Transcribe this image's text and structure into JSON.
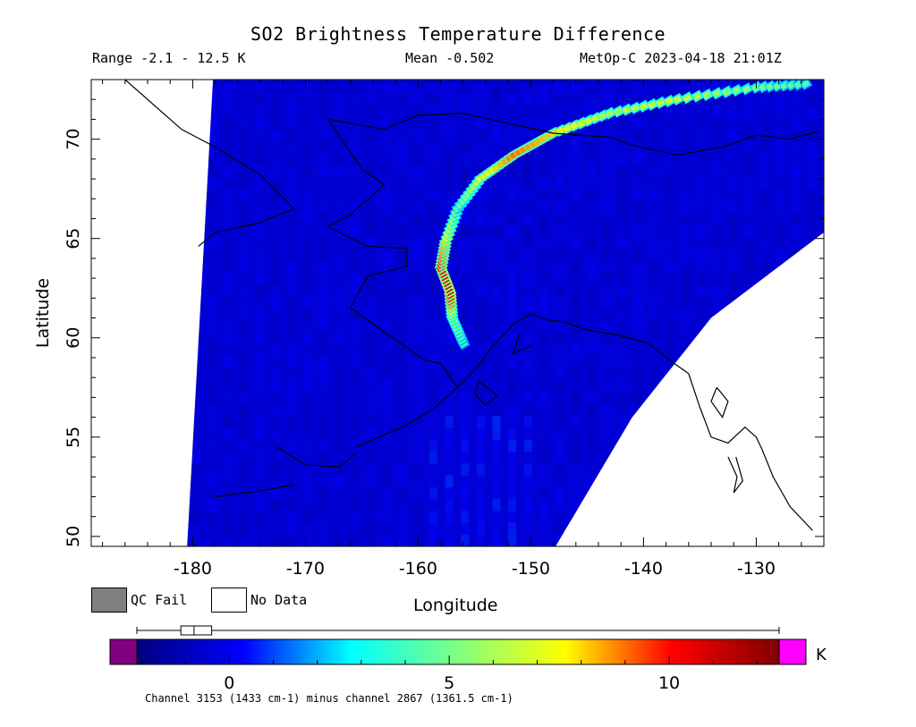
{
  "header": {
    "title": "SO2 Brightness Temperature Difference",
    "range": "Range -2.1 - 12.5 K",
    "mean": "Mean -0.502",
    "satellite": "MetOp-C 2023-04-18 21:01Z"
  },
  "legend": {
    "qc_fail": "QC Fail",
    "no_data": "No Data",
    "qc_fail_color": "#7f7f7f",
    "no_data_color": "#ffffff"
  },
  "footer": "Channel 3153 (1433 cm-1) minus channel 2867 (1361.5 cm-1)",
  "colorbar": {
    "unit": "K",
    "min": -2.1,
    "max": 12.5,
    "ticks": [
      0,
      5,
      10
    ],
    "tick_labels": [
      "0",
      "5",
      "10"
    ],
    "under_color": "#800080",
    "over_color": "#ff00ff",
    "colors": [
      "#000080",
      "#0000ff",
      "#00ffff",
      "#80ff80",
      "#ffff00",
      "#ff0000",
      "#800000"
    ],
    "boxplot": {
      "min": -2.1,
      "q1": -1.1,
      "median": -0.8,
      "q3": -0.4,
      "max": 12.5
    }
  },
  "chart_data": {
    "type": "heatmap",
    "title": "SO2 Brightness Temperature Difference",
    "xlabel": "Longitude",
    "ylabel": "Latitude",
    "xlim": [
      -189,
      -124
    ],
    "ylim": [
      49.5,
      73
    ],
    "xticks": [
      -180,
      -170,
      -160,
      -150,
      -140,
      -130
    ],
    "xtick_labels": [
      "-180",
      "-170",
      "-160",
      "-150",
      "-140",
      "-130"
    ],
    "yticks": [
      50,
      55,
      60,
      65,
      70
    ],
    "ytick_labels": [
      "50",
      "55",
      "60",
      "65",
      "70"
    ],
    "plume_track": [
      {
        "lon": -156,
        "lat": 59.7,
        "value": 4.0
      },
      {
        "lon": -157,
        "lat": 61.0,
        "value": 6.0
      },
      {
        "lon": -157.2,
        "lat": 62.3,
        "value": 11.5
      },
      {
        "lon": -158,
        "lat": 63.5,
        "value": 10.0
      },
      {
        "lon": -157.6,
        "lat": 64.8,
        "value": 8.0
      },
      {
        "lon": -156.5,
        "lat": 66.5,
        "value": 4.5
      },
      {
        "lon": -154.5,
        "lat": 68.0,
        "value": 7.0
      },
      {
        "lon": -151.5,
        "lat": 69.2,
        "value": 9.0
      },
      {
        "lon": -148,
        "lat": 70.3,
        "value": 8.0
      },
      {
        "lon": -143,
        "lat": 71.3,
        "value": 6.0
      },
      {
        "lon": -137,
        "lat": 72.0,
        "value": 6.5
      },
      {
        "lon": -130,
        "lat": 72.6,
        "value": 5.0
      },
      {
        "lon": -125,
        "lat": 72.8,
        "value": 4.0
      }
    ],
    "background_value": -0.5,
    "swath_left_edge": [
      {
        "lon": -180.5,
        "lat": 49.5
      },
      {
        "lon": -178.2,
        "lat": 73
      }
    ],
    "swath_right_edge": [
      {
        "lon": -147.8,
        "lat": 49.5
      },
      {
        "lon": -141,
        "lat": 56
      },
      {
        "lon": -134,
        "lat": 61
      },
      {
        "lon": -124,
        "lat": 65.3
      }
    ]
  }
}
